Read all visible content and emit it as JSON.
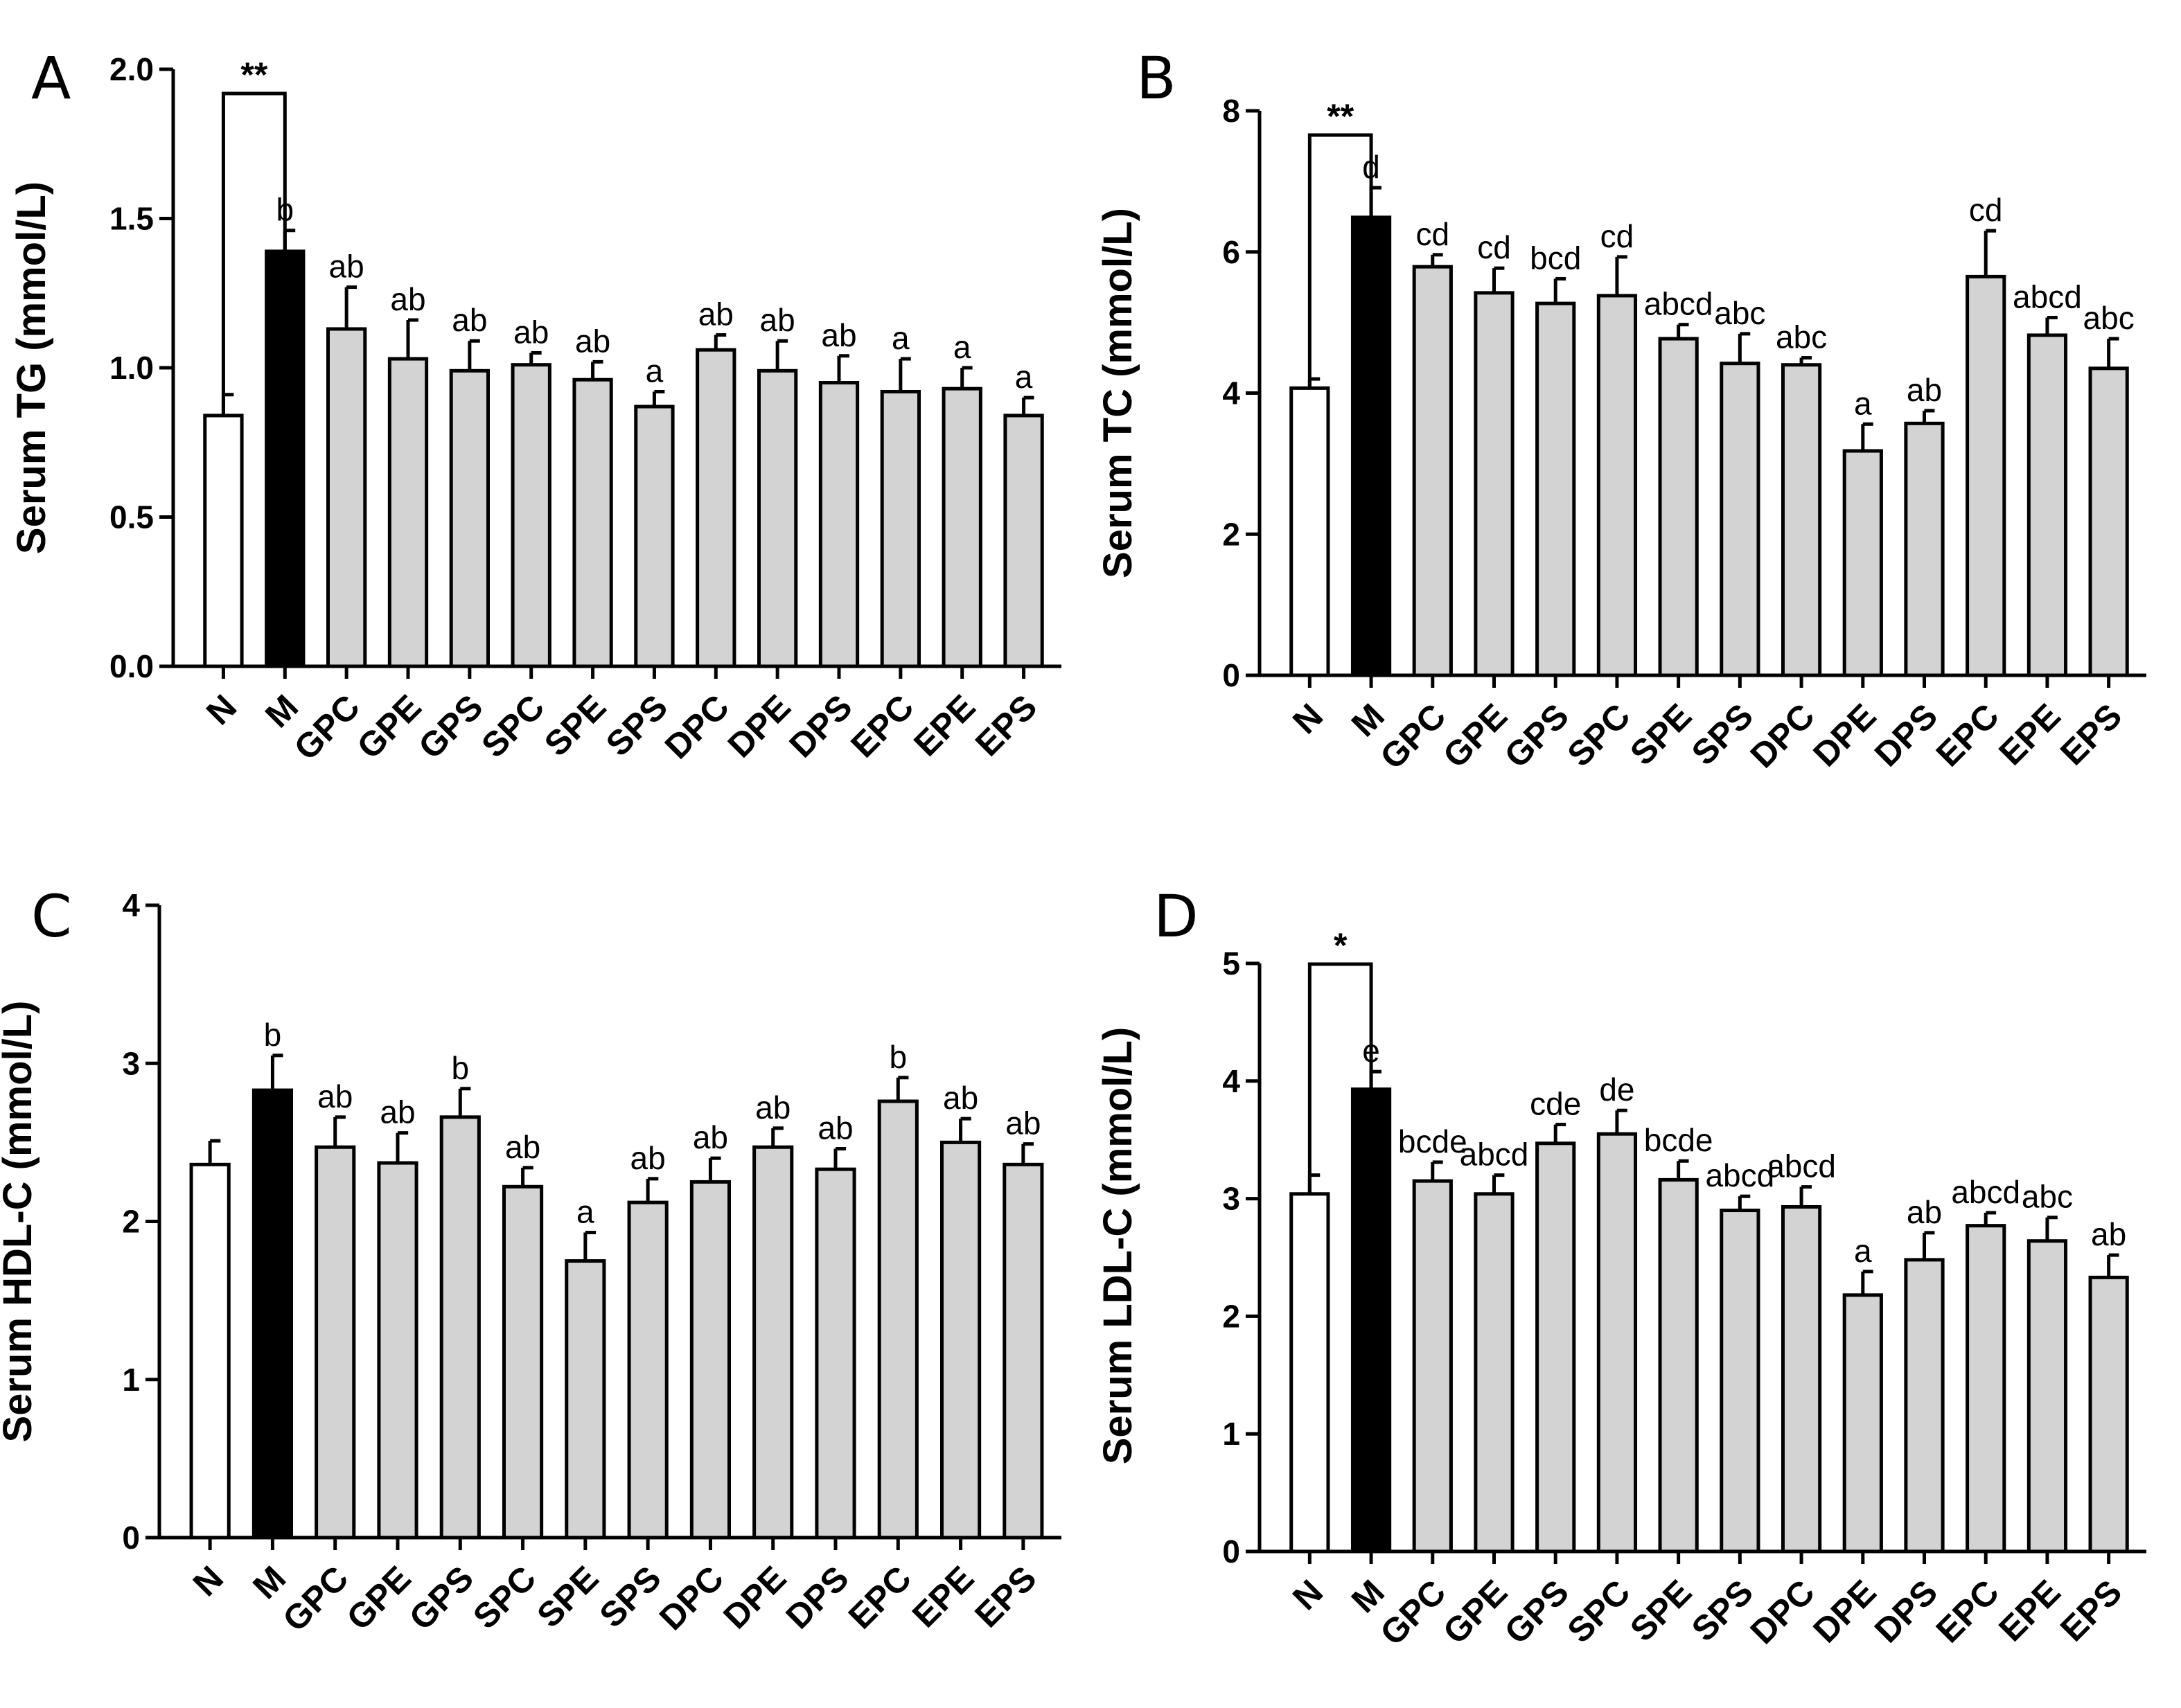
{
  "chart_data": [
    {
      "panel": "A",
      "type": "bar",
      "ylabel": "Serum TG (mmol/L)",
      "ylim": [
        0,
        2.0
      ],
      "yticks": [
        "0.0",
        "0.5",
        "1.0",
        "1.5",
        "2.0"
      ],
      "categories": [
        "N",
        "M",
        "GPC",
        "GPE",
        "GPS",
        "SPC",
        "SPE",
        "SPS",
        "DPC",
        "DPE",
        "DPS",
        "EPC",
        "EPE",
        "EPS"
      ],
      "values": [
        0.84,
        1.39,
        1.13,
        1.03,
        0.99,
        1.01,
        0.96,
        0.87,
        1.06,
        0.99,
        0.95,
        0.92,
        0.93,
        0.84
      ],
      "errors": [
        0.07,
        0.07,
        0.14,
        0.13,
        0.1,
        0.04,
        0.06,
        0.05,
        0.05,
        0.1,
        0.09,
        0.11,
        0.07,
        0.06
      ],
      "letters": [
        "",
        "b",
        "ab",
        "ab",
        "ab",
        "ab",
        "ab",
        "a",
        "ab",
        "ab",
        "ab",
        "a",
        "a",
        "a"
      ],
      "fills": [
        "#ffffff",
        "#000000",
        "#d3d3d3",
        "#d3d3d3",
        "#d3d3d3",
        "#d3d3d3",
        "#d3d3d3",
        "#d3d3d3",
        "#d3d3d3",
        "#d3d3d3",
        "#d3d3d3",
        "#d3d3d3",
        "#d3d3d3",
        "#d3d3d3"
      ],
      "significance": {
        "from": "N",
        "to": "M",
        "label": "**"
      }
    },
    {
      "panel": "B",
      "type": "bar",
      "ylabel": "Serum TC (mmol/L)",
      "ylim": [
        0,
        8
      ],
      "yticks": [
        "0",
        "2",
        "4",
        "6",
        "8"
      ],
      "categories": [
        "N",
        "M",
        "GPC",
        "GPE",
        "GPS",
        "SPC",
        "SPE",
        "SPS",
        "DPC",
        "DPE",
        "DPS",
        "EPC",
        "EPE",
        "EPS"
      ],
      "values": [
        4.07,
        6.49,
        5.79,
        5.42,
        5.27,
        5.38,
        4.77,
        4.42,
        4.4,
        3.18,
        3.57,
        5.65,
        4.82,
        4.35
      ],
      "errors": [
        0.13,
        0.42,
        0.17,
        0.35,
        0.35,
        0.55,
        0.2,
        0.42,
        0.1,
        0.38,
        0.18,
        0.65,
        0.25,
        0.42
      ],
      "letters": [
        "",
        "d",
        "cd",
        "cd",
        "bcd",
        "cd",
        "abcd",
        "abc",
        "abc",
        "a",
        "ab",
        "cd",
        "abcd",
        "abc"
      ],
      "fills": [
        "#ffffff",
        "#000000",
        "#d3d3d3",
        "#d3d3d3",
        "#d3d3d3",
        "#d3d3d3",
        "#d3d3d3",
        "#d3d3d3",
        "#d3d3d3",
        "#d3d3d3",
        "#d3d3d3",
        "#d3d3d3",
        "#d3d3d3",
        "#d3d3d3"
      ],
      "significance": {
        "from": "N",
        "to": "M",
        "label": "**"
      }
    },
    {
      "panel": "C",
      "type": "bar",
      "ylabel": "Serum HDL-C (mmol/L)",
      "ylim": [
        0,
        4
      ],
      "yticks": [
        "0",
        "1",
        "2",
        "3",
        "4"
      ],
      "categories": [
        "N",
        "M",
        "GPC",
        "GPE",
        "GPS",
        "SPC",
        "SPE",
        "SPS",
        "DPC",
        "DPE",
        "DPS",
        "EPC",
        "EPE",
        "EPS"
      ],
      "values": [
        2.36,
        2.83,
        2.47,
        2.37,
        2.66,
        2.22,
        1.75,
        2.12,
        2.25,
        2.47,
        2.33,
        2.76,
        2.5,
        2.36
      ],
      "errors": [
        0.15,
        0.22,
        0.19,
        0.19,
        0.18,
        0.12,
        0.18,
        0.15,
        0.15,
        0.12,
        0.13,
        0.15,
        0.15,
        0.13
      ],
      "letters": [
        "",
        "b",
        "ab",
        "ab",
        "b",
        "ab",
        "a",
        "ab",
        "ab",
        "ab",
        "ab",
        "b",
        "ab",
        "ab"
      ],
      "fills": [
        "#ffffff",
        "#000000",
        "#d3d3d3",
        "#d3d3d3",
        "#d3d3d3",
        "#d3d3d3",
        "#d3d3d3",
        "#d3d3d3",
        "#d3d3d3",
        "#d3d3d3",
        "#d3d3d3",
        "#d3d3d3",
        "#d3d3d3",
        "#d3d3d3"
      ],
      "significance": null
    },
    {
      "panel": "D",
      "type": "bar",
      "ylabel": "Serum LDL-C (mmol/L)",
      "ylim": [
        0,
        5.2
      ],
      "yticks": [
        "0",
        "1",
        "2",
        "3",
        "4",
        "5"
      ],
      "categories": [
        "N",
        "M",
        "GPC",
        "GPE",
        "GPS",
        "SPC",
        "SPE",
        "SPS",
        "DPC",
        "DPE",
        "DPS",
        "EPC",
        "EPE",
        "EPS"
      ],
      "values": [
        3.04,
        3.93,
        3.15,
        3.04,
        3.47,
        3.55,
        3.16,
        2.9,
        2.93,
        2.18,
        2.48,
        2.77,
        2.64,
        2.33
      ],
      "errors": [
        0.16,
        0.15,
        0.16,
        0.16,
        0.16,
        0.2,
        0.16,
        0.12,
        0.17,
        0.2,
        0.23,
        0.11,
        0.2,
        0.19
      ],
      "letters": [
        "",
        "e",
        "bcde",
        "abcd",
        "cde",
        "de",
        "bcde",
        "abcd",
        "abcd",
        "a",
        "ab",
        "abcd",
        "abc",
        "ab"
      ],
      "fills": [
        "#ffffff",
        "#000000",
        "#d3d3d3",
        "#d3d3d3",
        "#d3d3d3",
        "#d3d3d3",
        "#d3d3d3",
        "#d3d3d3",
        "#d3d3d3",
        "#d3d3d3",
        "#d3d3d3",
        "#d3d3d3",
        "#d3d3d3",
        "#d3d3d3"
      ],
      "significance": {
        "from": "N",
        "to": "M",
        "label": "*"
      }
    }
  ]
}
